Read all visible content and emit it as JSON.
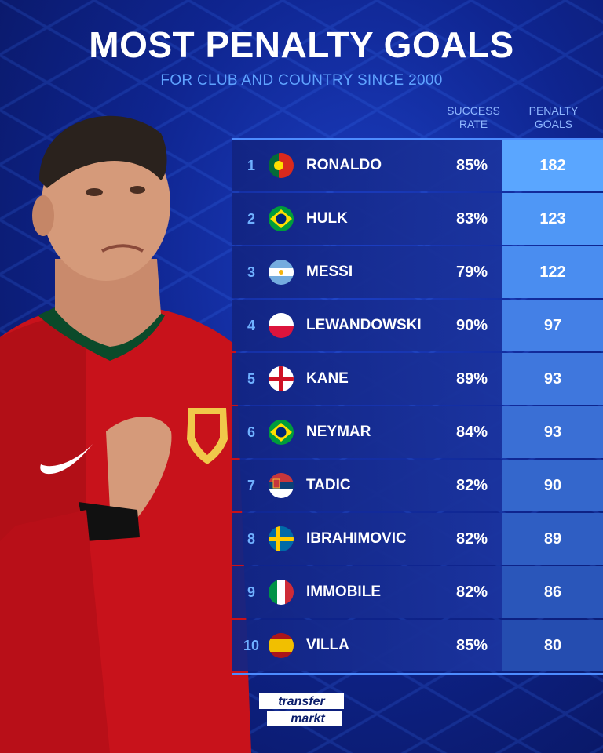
{
  "header": {
    "title": "MOST PENALTY GOALS",
    "subtitle": "FOR CLUB AND COUNTRY SINCE 2000"
  },
  "columns": {
    "success_rate": "SUCCESS\nRATE",
    "penalty_goals": "PENALTY\nGOALS"
  },
  "rows": [
    {
      "rank": "1",
      "name": "RONALDO",
      "flag": "portugal-flag-icon",
      "rate": "85%",
      "goals": "182",
      "goals_color": "#5aa6ff"
    },
    {
      "rank": "2",
      "name": "HULK",
      "flag": "brazil-flag-icon",
      "rate": "83%",
      "goals": "123",
      "goals_color": "#4f97f6"
    },
    {
      "rank": "3",
      "name": "MESSI",
      "flag": "argentina-flag-icon",
      "rate": "79%",
      "goals": "122",
      "goals_color": "#4a8df0"
    },
    {
      "rank": "4",
      "name": "LEWANDOWSKI",
      "flag": "poland-flag-icon",
      "rate": "90%",
      "goals": "97",
      "goals_color": "#4480e6"
    },
    {
      "rank": "5",
      "name": "KANE",
      "flag": "england-flag-icon",
      "rate": "89%",
      "goals": "93",
      "goals_color": "#3f77dd"
    },
    {
      "rank": "6",
      "name": "NEYMAR",
      "flag": "brazil-flag-icon",
      "rate": "84%",
      "goals": "93",
      "goals_color": "#3a6fd5"
    },
    {
      "rank": "7",
      "name": "TADIC",
      "flag": "serbia-flag-icon",
      "rate": "82%",
      "goals": "90",
      "goals_color": "#3467cc"
    },
    {
      "rank": "8",
      "name": "IBRAHIMOVIC",
      "flag": "sweden-flag-icon",
      "rate": "82%",
      "goals": "89",
      "goals_color": "#2f5ec3"
    },
    {
      "rank": "9",
      "name": "IMMOBILE",
      "flag": "italy-flag-icon",
      "rate": "82%",
      "goals": "86",
      "goals_color": "#2a56ba"
    },
    {
      "rank": "10",
      "name": "VILLA",
      "flag": "spain-flag-icon",
      "rate": "85%",
      "goals": "80",
      "goals_color": "#254db0"
    }
  ],
  "branding": {
    "logo_line1": "transfer",
    "logo_line2": "markt"
  },
  "colors": {
    "background": "#0f2590",
    "accent": "#5fa3ff",
    "player_shirt": "#d8141c"
  }
}
